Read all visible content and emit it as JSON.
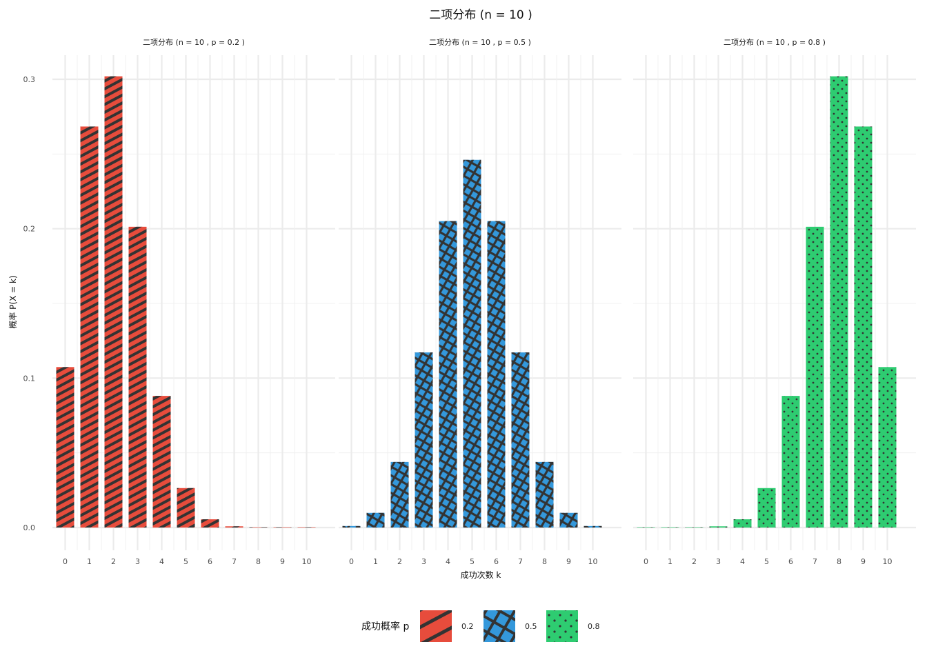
{
  "chart_data": {
    "type": "bar",
    "title": "二项分布 (n = 10 )",
    "xlabel": "成功次数 k",
    "ylabel": "概率 P(X = k)",
    "x": [
      0,
      1,
      2,
      3,
      4,
      5,
      6,
      7,
      8,
      9,
      10
    ],
    "ylim": [
      0,
      0.3
    ],
    "yticks": [
      "0.0",
      "0.1",
      "0.2",
      "0.3"
    ],
    "grid": true,
    "legend": {
      "title": "成功概率 p",
      "position": "bottom",
      "entries": [
        "0.2",
        "0.5",
        "0.8"
      ]
    },
    "facets": [
      {
        "label": "二项分布 (n = 10 , p = 0.2 )",
        "p": "0.2",
        "color": "#e74c3c",
        "pattern": "stripe",
        "values": [
          0.1074,
          0.2684,
          0.302,
          0.2013,
          0.0881,
          0.0264,
          0.0055,
          0.0008,
          0.0001,
          0.0,
          0.0
        ]
      },
      {
        "label": "二项分布 (n = 10 , p = 0.5 )",
        "p": "0.5",
        "color": "#3498db",
        "pattern": "crosshatch",
        "values": [
          0.001,
          0.0098,
          0.0439,
          0.1172,
          0.2051,
          0.2461,
          0.2051,
          0.1172,
          0.0439,
          0.0098,
          0.001
        ]
      },
      {
        "label": "二项分布 (n = 10 , p = 0.8 )",
        "p": "0.8",
        "color": "#2ecc71",
        "pattern": "dots",
        "values": [
          0.0,
          0.0,
          0.0001,
          0.0008,
          0.0055,
          0.0264,
          0.0881,
          0.2013,
          0.302,
          0.2684,
          0.1074
        ]
      }
    ]
  }
}
